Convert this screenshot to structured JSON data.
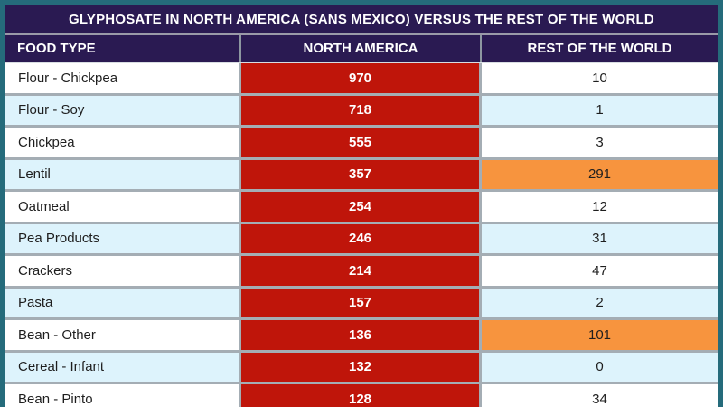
{
  "title": "GLYPHOSATE IN NORTH AMERICA (SANS MEXICO) VERSUS THE REST OF THE WORLD",
  "columns": [
    "FOOD TYPE",
    "NORTH AMERICA",
    "REST OF THE WORLD"
  ],
  "rows": [
    {
      "food": "Flour - Chickpea",
      "north_america": "970",
      "rest_of_world": "10",
      "rest_highlight": false
    },
    {
      "food": "Flour - Soy",
      "north_america": "718",
      "rest_of_world": "1",
      "rest_highlight": false
    },
    {
      "food": "Chickpea",
      "north_america": "555",
      "rest_of_world": "3",
      "rest_highlight": false
    },
    {
      "food": "Lentil",
      "north_america": "357",
      "rest_of_world": "291",
      "rest_highlight": true
    },
    {
      "food": "Oatmeal",
      "north_america": "254",
      "rest_of_world": "12",
      "rest_highlight": false
    },
    {
      "food": "Pea Products",
      "north_america": "246",
      "rest_of_world": "31",
      "rest_highlight": false
    },
    {
      "food": "Crackers",
      "north_america": "214",
      "rest_of_world": "47",
      "rest_highlight": false
    },
    {
      "food": "Pasta",
      "north_america": "157",
      "rest_of_world": "2",
      "rest_highlight": false
    },
    {
      "food": "Bean - Other",
      "north_america": "136",
      "rest_of_world": "101",
      "rest_highlight": true
    },
    {
      "food": "Cereal - Infant",
      "north_america": "132",
      "rest_of_world": "0",
      "rest_highlight": false
    },
    {
      "food": "Bean - Pinto",
      "north_america": "128",
      "rest_of_world": "34",
      "rest_highlight": false
    }
  ],
  "colors": {
    "frame_border": "#256b7b",
    "header_bg": "#2a1a52",
    "na_cell_bg": "#bf150a",
    "highlight_bg": "#f7943e",
    "zebra_bg": "#ddf3fc",
    "grid_line": "#a4adb4"
  },
  "chart_data": {
    "type": "table",
    "title": "GLYPHOSATE IN NORTH AMERICA (SANS MEXICO) VERSUS THE REST OF THE WORLD",
    "columns": [
      "FOOD TYPE",
      "NORTH AMERICA",
      "REST OF THE WORLD"
    ],
    "rows": [
      [
        "Flour - Chickpea",
        970,
        10
      ],
      [
        "Flour - Soy",
        718,
        1
      ],
      [
        "Chickpea",
        555,
        3
      ],
      [
        "Lentil",
        357,
        291
      ],
      [
        "Oatmeal",
        254,
        12
      ],
      [
        "Pea Products",
        246,
        31
      ],
      [
        "Crackers",
        214,
        47
      ],
      [
        "Pasta",
        157,
        2
      ],
      [
        "Bean - Other",
        136,
        101
      ],
      [
        "Cereal - Infant",
        132,
        0
      ],
      [
        "Bean - Pinto",
        128,
        34
      ]
    ],
    "highlighted_rest_of_world_rows": [
      "Lentil",
      "Bean - Other"
    ],
    "layout": "all NORTH AMERICA cells shaded red; REST OF THE WORLD cells above 100 shaded orange; zebra striping on alternate rows; last row clipped at bottom of viewport"
  }
}
